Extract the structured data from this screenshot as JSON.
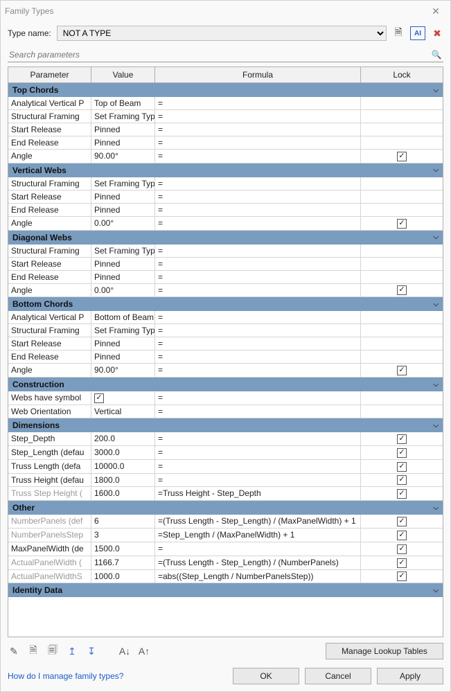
{
  "window_title": "Family Types",
  "type_name_label": "Type name:",
  "type_name_value": "NOT A TYPE",
  "search_placeholder": "Search parameters",
  "columns": {
    "param": "Parameter",
    "value": "Value",
    "formula": "Formula",
    "lock": "Lock"
  },
  "colors": {
    "group_bg": "#7a9cbf",
    "border": "#b0b0b0"
  },
  "groups": [
    {
      "title": "Top Chords",
      "rows": [
        {
          "param": "Analytical Vertical P",
          "value": "Top of Beam",
          "formula": "=",
          "lock": null
        },
        {
          "param": "Structural Framing",
          "value": "Set Framing Type",
          "formula": "=",
          "lock": null
        },
        {
          "param": "Start Release",
          "value": "Pinned",
          "formula": "=",
          "lock": null
        },
        {
          "param": "End Release",
          "value": "Pinned",
          "formula": "=",
          "lock": null
        },
        {
          "param": "Angle",
          "value": "90.00°",
          "formula": "=",
          "lock": true
        }
      ]
    },
    {
      "title": "Vertical Webs",
      "rows": [
        {
          "param": "Structural Framing",
          "value": "Set Framing Type",
          "formula": "=",
          "lock": null
        },
        {
          "param": "Start Release",
          "value": "Pinned",
          "formula": "=",
          "lock": null
        },
        {
          "param": "End Release",
          "value": "Pinned",
          "formula": "=",
          "lock": null
        },
        {
          "param": "Angle",
          "value": "0.00°",
          "formula": "=",
          "lock": true
        }
      ]
    },
    {
      "title": "Diagonal Webs",
      "rows": [
        {
          "param": "Structural Framing",
          "value": "Set Framing Type",
          "formula": "=",
          "lock": null
        },
        {
          "param": "Start Release",
          "value": "Pinned",
          "formula": "=",
          "lock": null
        },
        {
          "param": "End Release",
          "value": "Pinned",
          "formula": "=",
          "lock": null
        },
        {
          "param": "Angle",
          "value": "0.00°",
          "formula": "=",
          "lock": true
        }
      ]
    },
    {
      "title": "Bottom Chords",
      "rows": [
        {
          "param": "Analytical Vertical P",
          "value": "Bottom of Beam",
          "formula": "=",
          "lock": null
        },
        {
          "param": "Structural Framing",
          "value": "Set Framing Type",
          "formula": "=",
          "lock": null
        },
        {
          "param": "Start Release",
          "value": "Pinned",
          "formula": "=",
          "lock": null
        },
        {
          "param": "End Release",
          "value": "Pinned",
          "formula": "=",
          "lock": null
        },
        {
          "param": "Angle",
          "value": "90.00°",
          "formula": "=",
          "lock": true
        }
      ]
    },
    {
      "title": "Construction",
      "rows": [
        {
          "param": "Webs have symbol",
          "value": "__CHECK_TRUE__",
          "formula": "=",
          "lock": null
        },
        {
          "param": "Web Orientation",
          "value": "Vertical",
          "formula": "=",
          "lock": null
        }
      ]
    },
    {
      "title": "Dimensions",
      "rows": [
        {
          "param": "Step_Depth",
          "value": "200.0",
          "formula": "=",
          "lock": true
        },
        {
          "param": "Step_Length (defau",
          "value": "3000.0",
          "formula": "=",
          "lock": true
        },
        {
          "param": "Truss Length (defa",
          "value": "10000.0",
          "formula": "=",
          "lock": true
        },
        {
          "param": "Truss Height (defau",
          "value": "1800.0",
          "formula": "=",
          "lock": true
        },
        {
          "param": "Truss Step Height (",
          "value": "1600.0",
          "formula": "=Truss Height - Step_Depth",
          "lock": true,
          "gray": true
        }
      ]
    },
    {
      "title": "Other",
      "rows": [
        {
          "param": "NumberPanels (def",
          "value": "6",
          "formula": "=(Truss Length - Step_Length) / (MaxPanelWidth) + 1",
          "lock": true,
          "gray": true
        },
        {
          "param": "NumberPanelsStep",
          "value": "3",
          "formula": "=Step_Length / (MaxPanelWidth) + 1",
          "lock": true,
          "gray": true
        },
        {
          "param": "MaxPanelWidth (de",
          "value": "1500.0",
          "formula": "=",
          "lock": true
        },
        {
          "param": "ActualPanelWidth (",
          "value": "1166.7",
          "formula": "=(Truss Length - Step_Length) / (NumberPanels)",
          "lock": true,
          "gray": true
        },
        {
          "param": "ActualPanelWidthS",
          "value": "1000.0",
          "formula": "=abs((Step_Length / NumberPanelsStep))",
          "lock": true,
          "gray": true
        }
      ]
    },
    {
      "title": "Identity Data",
      "rows": [],
      "empty_space": true
    }
  ],
  "manage_lookup_label": "Manage Lookup Tables",
  "help_link": "How do I manage family types?",
  "ok": "OK",
  "cancel": "Cancel",
  "apply": "Apply"
}
